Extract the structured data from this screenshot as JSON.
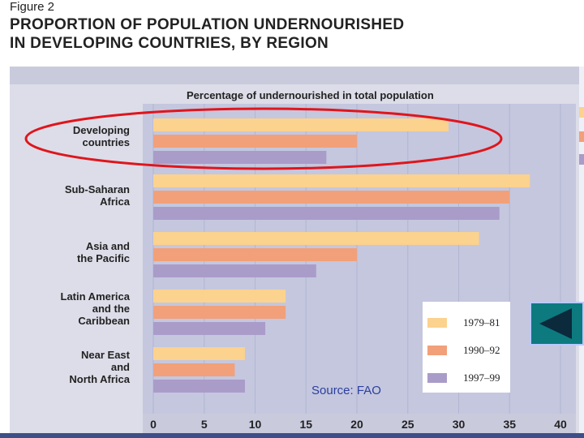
{
  "figure": {
    "label": "Figure 2",
    "title_line1": "PROPORTION OF POPULATION UNDERNOURISHED",
    "title_line2": "IN DEVELOPING COUNTRIES, BY REGION"
  },
  "source": "Source: FAO",
  "nav_button": {
    "icon": "back-triangle-icon",
    "color": "#0d7a7f"
  },
  "colors": {
    "c1979": "#fbd28e",
    "c1990": "#f2a079",
    "c1997": "#aa9cc9"
  },
  "chart_data": {
    "type": "bar",
    "orientation": "horizontal",
    "title": "Percentage of undernourished in total population",
    "categories": [
      "Developing\ncountries",
      "Sub-Saharan\nAfrica",
      "Asia and\nthe Pacific",
      "Latin America\nand the\nCaribbean",
      "Near East\nand\nNorth Africa"
    ],
    "series": [
      {
        "name": "1979–81",
        "values": [
          29,
          37,
          32,
          13,
          9
        ]
      },
      {
        "name": "1990–92",
        "values": [
          20,
          35,
          20,
          13,
          8
        ]
      },
      {
        "name": "1997–99",
        "values": [
          17,
          34,
          16,
          11,
          9
        ]
      }
    ],
    "xlim": [
      0,
      41
    ],
    "x_ticks": [
      "0",
      "5",
      "10",
      "15",
      "20",
      "25",
      "30",
      "35",
      "40"
    ],
    "grid": true,
    "legend_position": "bottom-right",
    "annotation": "red ellipse around Developing countries"
  }
}
